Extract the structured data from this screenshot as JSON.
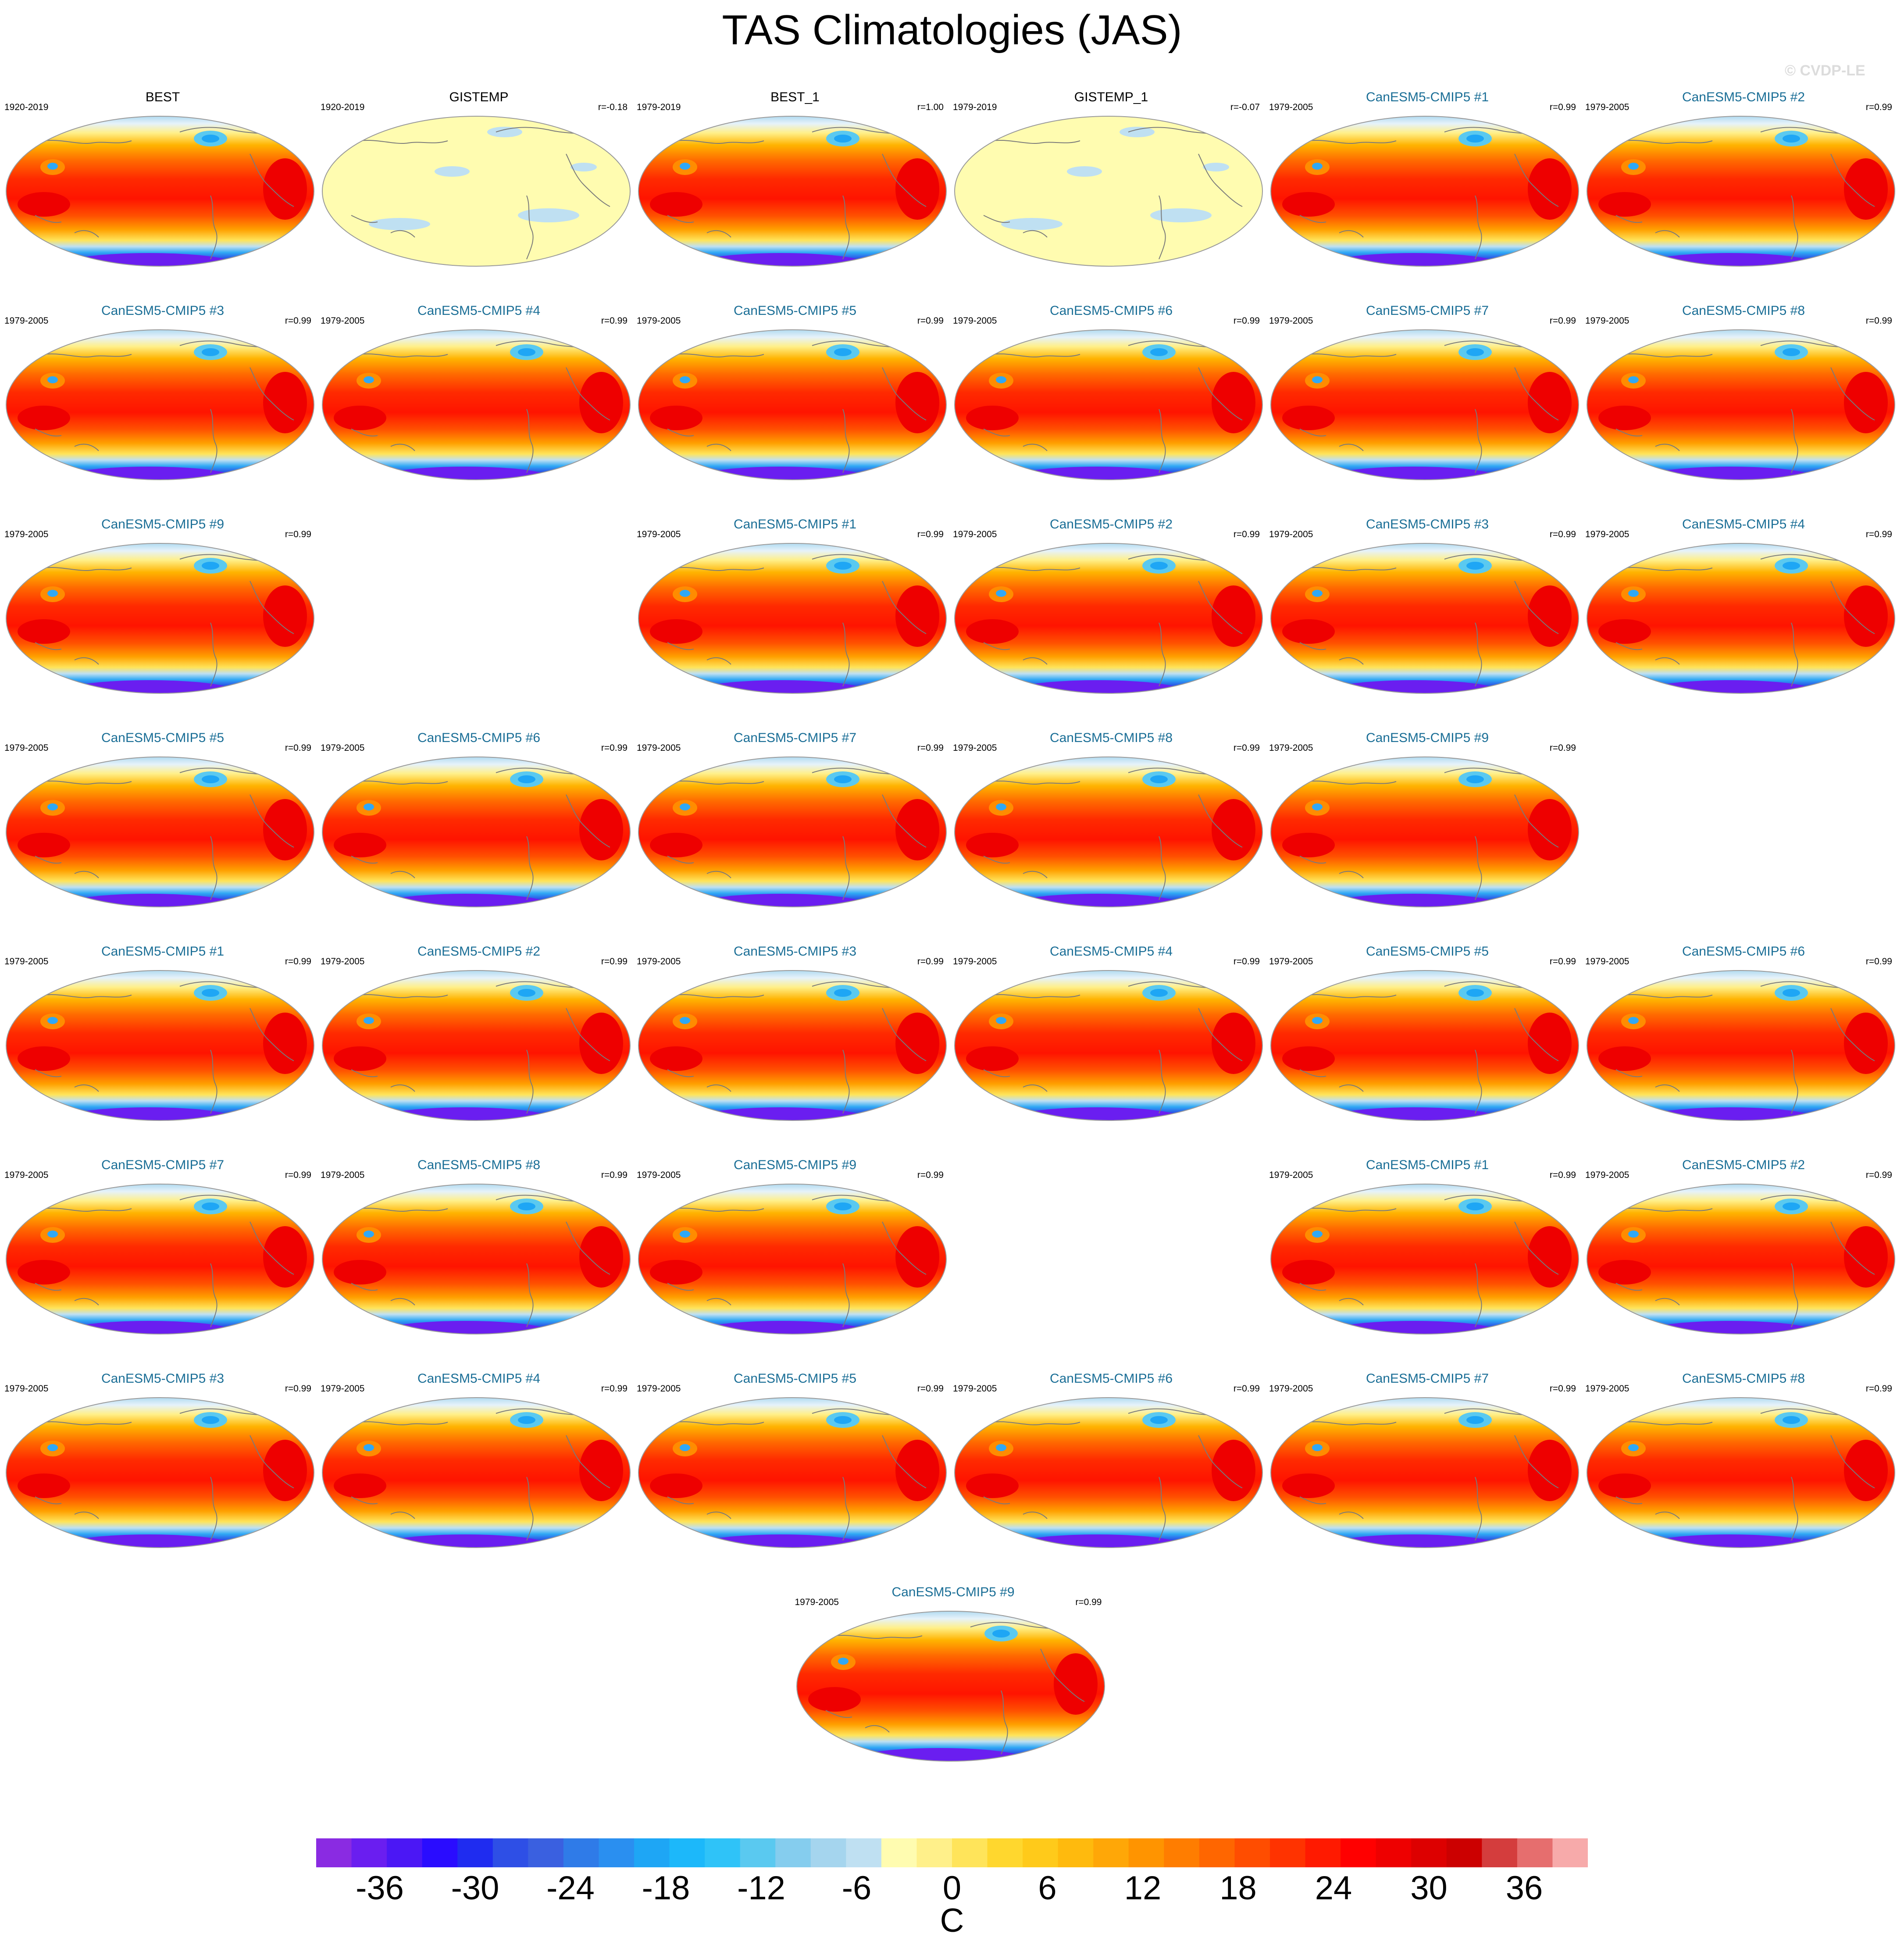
{
  "figure": {
    "title": "TAS Climatologies (JAS)",
    "credit": "© CVDP-LE"
  },
  "chart_data": {
    "type": "map-panel-grid",
    "variable": "TAS",
    "season": "JAS",
    "units": "C",
    "colorbar": {
      "levels": [
        -40,
        -38,
        -36,
        -34,
        -32,
        -30,
        -28,
        -26,
        -24,
        -22,
        -20,
        -18,
        -16,
        -14,
        -12,
        -10,
        -8,
        -6,
        -4,
        -2,
        0,
        2,
        4,
        6,
        8,
        10,
        12,
        14,
        16,
        18,
        20,
        22,
        24,
        26,
        28,
        30,
        32,
        34,
        36,
        38,
        40
      ],
      "tick_labels": [
        "-36",
        "-30",
        "-24",
        "-18",
        "-12",
        "-6",
        "0",
        "6",
        "12",
        "18",
        "24",
        "30",
        "36"
      ],
      "tick_values": [
        -36,
        -30,
        -24,
        -18,
        -12,
        -6,
        0,
        6,
        12,
        18,
        24,
        30,
        36
      ],
      "colors": [
        "#8a2be2",
        "#6a1ef0",
        "#4b17f5",
        "#2a0cff",
        "#1f2cf0",
        "#2e4fe6",
        "#3a60e0",
        "#2f7be8",
        "#2a8ff0",
        "#1ea6f5",
        "#1cb8fa",
        "#2fc3f8",
        "#5ac9f0",
        "#85cdee",
        "#a5d5ee",
        "#bfe0f2",
        "#fffcb0",
        "#fff08a",
        "#ffe45a",
        "#ffd72e",
        "#ffca1a",
        "#ffba0d",
        "#ffa707",
        "#ff9400",
        "#ff7d00",
        "#ff6600",
        "#ff4d00",
        "#ff3300",
        "#ff1a00",
        "#ff0000",
        "#ee0000",
        "#dd0000",
        "#cc0000",
        "#d43d3d",
        "#e66e6e",
        "#f7aaaa"
      ]
    },
    "panels": [
      {
        "row": 0,
        "col": 0,
        "title": "BEST",
        "period": "1920-2019",
        "r": "",
        "kind": "obs",
        "style": "full"
      },
      {
        "row": 0,
        "col": 1,
        "title": "GISTEMP",
        "period": "1920-2019",
        "r": "r=-0.18",
        "kind": "obs",
        "style": "anom"
      },
      {
        "row": 0,
        "col": 2,
        "title": "BEST_1",
        "period": "1979-2019",
        "r": "r=1.00",
        "kind": "obs",
        "style": "full"
      },
      {
        "row": 0,
        "col": 3,
        "title": "GISTEMP_1",
        "period": "1979-2019",
        "r": "r=-0.07",
        "kind": "obs",
        "style": "anom"
      },
      {
        "row": 0,
        "col": 4,
        "title": "CanESM5-CMIP5 #1",
        "period": "1979-2005",
        "r": "r=0.99",
        "kind": "model",
        "style": "full"
      },
      {
        "row": 0,
        "col": 5,
        "title": "CanESM5-CMIP5 #2",
        "period": "1979-2005",
        "r": "r=0.99",
        "kind": "model",
        "style": "full"
      },
      {
        "row": 1,
        "col": 0,
        "title": "CanESM5-CMIP5 #3",
        "period": "1979-2005",
        "r": "r=0.99",
        "kind": "model",
        "style": "full"
      },
      {
        "row": 1,
        "col": 1,
        "title": "CanESM5-CMIP5 #4",
        "period": "1979-2005",
        "r": "r=0.99",
        "kind": "model",
        "style": "full"
      },
      {
        "row": 1,
        "col": 2,
        "title": "CanESM5-CMIP5 #5",
        "period": "1979-2005",
        "r": "r=0.99",
        "kind": "model",
        "style": "full"
      },
      {
        "row": 1,
        "col": 3,
        "title": "CanESM5-CMIP5 #6",
        "period": "1979-2005",
        "r": "r=0.99",
        "kind": "model",
        "style": "full"
      },
      {
        "row": 1,
        "col": 4,
        "title": "CanESM5-CMIP5 #7",
        "period": "1979-2005",
        "r": "r=0.99",
        "kind": "model",
        "style": "full"
      },
      {
        "row": 1,
        "col": 5,
        "title": "CanESM5-CMIP5 #8",
        "period": "1979-2005",
        "r": "r=0.99",
        "kind": "model",
        "style": "full"
      },
      {
        "row": 2,
        "col": 0,
        "title": "CanESM5-CMIP5 #9",
        "period": "1979-2005",
        "r": "r=0.99",
        "kind": "model",
        "style": "full"
      },
      {
        "row": 2,
        "col": 2,
        "title": "CanESM5-CMIP5 #1",
        "period": "1979-2005",
        "r": "r=0.99",
        "kind": "model",
        "style": "full"
      },
      {
        "row": 2,
        "col": 3,
        "title": "CanESM5-CMIP5 #2",
        "period": "1979-2005",
        "r": "r=0.99",
        "kind": "model",
        "style": "full"
      },
      {
        "row": 2,
        "col": 4,
        "title": "CanESM5-CMIP5 #3",
        "period": "1979-2005",
        "r": "r=0.99",
        "kind": "model",
        "style": "full"
      },
      {
        "row": 2,
        "col": 5,
        "title": "CanESM5-CMIP5 #4",
        "period": "1979-2005",
        "r": "r=0.99",
        "kind": "model",
        "style": "full"
      },
      {
        "row": 3,
        "col": 0,
        "title": "CanESM5-CMIP5 #5",
        "period": "1979-2005",
        "r": "r=0.99",
        "kind": "model",
        "style": "full"
      },
      {
        "row": 3,
        "col": 1,
        "title": "CanESM5-CMIP5 #6",
        "period": "1979-2005",
        "r": "r=0.99",
        "kind": "model",
        "style": "full"
      },
      {
        "row": 3,
        "col": 2,
        "title": "CanESM5-CMIP5 #7",
        "period": "1979-2005",
        "r": "r=0.99",
        "kind": "model",
        "style": "full"
      },
      {
        "row": 3,
        "col": 3,
        "title": "CanESM5-CMIP5 #8",
        "period": "1979-2005",
        "r": "r=0.99",
        "kind": "model",
        "style": "full"
      },
      {
        "row": 3,
        "col": 4,
        "title": "CanESM5-CMIP5 #9",
        "period": "1979-2005",
        "r": "r=0.99",
        "kind": "model",
        "style": "full"
      },
      {
        "row": 4,
        "col": 0,
        "title": "CanESM5-CMIP5 #1",
        "period": "1979-2005",
        "r": "r=0.99",
        "kind": "model",
        "style": "full"
      },
      {
        "row": 4,
        "col": 1,
        "title": "CanESM5-CMIP5 #2",
        "period": "1979-2005",
        "r": "r=0.99",
        "kind": "model",
        "style": "full"
      },
      {
        "row": 4,
        "col": 2,
        "title": "CanESM5-CMIP5 #3",
        "period": "1979-2005",
        "r": "r=0.99",
        "kind": "model",
        "style": "full"
      },
      {
        "row": 4,
        "col": 3,
        "title": "CanESM5-CMIP5 #4",
        "period": "1979-2005",
        "r": "r=0.99",
        "kind": "model",
        "style": "full"
      },
      {
        "row": 4,
        "col": 4,
        "title": "CanESM5-CMIP5 #5",
        "period": "1979-2005",
        "r": "r=0.99",
        "kind": "model",
        "style": "full"
      },
      {
        "row": 4,
        "col": 5,
        "title": "CanESM5-CMIP5 #6",
        "period": "1979-2005",
        "r": "r=0.99",
        "kind": "model",
        "style": "full"
      },
      {
        "row": 5,
        "col": 0,
        "title": "CanESM5-CMIP5 #7",
        "period": "1979-2005",
        "r": "r=0.99",
        "kind": "model",
        "style": "full"
      },
      {
        "row": 5,
        "col": 1,
        "title": "CanESM5-CMIP5 #8",
        "period": "1979-2005",
        "r": "r=0.99",
        "kind": "model",
        "style": "full"
      },
      {
        "row": 5,
        "col": 2,
        "title": "CanESM5-CMIP5 #9",
        "period": "1979-2005",
        "r": "r=0.99",
        "kind": "model",
        "style": "full"
      },
      {
        "row": 5,
        "col": 4,
        "title": "CanESM5-CMIP5 #1",
        "period": "1979-2005",
        "r": "r=0.99",
        "kind": "model",
        "style": "full"
      },
      {
        "row": 5,
        "col": 5,
        "title": "CanESM5-CMIP5 #2",
        "period": "1979-2005",
        "r": "r=0.99",
        "kind": "model",
        "style": "full"
      },
      {
        "row": 6,
        "col": 0,
        "title": "CanESM5-CMIP5 #3",
        "period": "1979-2005",
        "r": "r=0.99",
        "kind": "model",
        "style": "full"
      },
      {
        "row": 6,
        "col": 1,
        "title": "CanESM5-CMIP5 #4",
        "period": "1979-2005",
        "r": "r=0.99",
        "kind": "model",
        "style": "full"
      },
      {
        "row": 6,
        "col": 2,
        "title": "CanESM5-CMIP5 #5",
        "period": "1979-2005",
        "r": "r=0.99",
        "kind": "model",
        "style": "full"
      },
      {
        "row": 6,
        "col": 3,
        "title": "CanESM5-CMIP5 #6",
        "period": "1979-2005",
        "r": "r=0.99",
        "kind": "model",
        "style": "full"
      },
      {
        "row": 6,
        "col": 4,
        "title": "CanESM5-CMIP5 #7",
        "period": "1979-2005",
        "r": "r=0.99",
        "kind": "model",
        "style": "full"
      },
      {
        "row": 6,
        "col": 5,
        "title": "CanESM5-CMIP5 #8",
        "period": "1979-2005",
        "r": "r=0.99",
        "kind": "model",
        "style": "full"
      },
      {
        "row": 7,
        "col": 2.5,
        "title": "CanESM5-CMIP5 #9",
        "period": "1979-2005",
        "r": "r=0.99",
        "kind": "model",
        "style": "full"
      }
    ]
  }
}
